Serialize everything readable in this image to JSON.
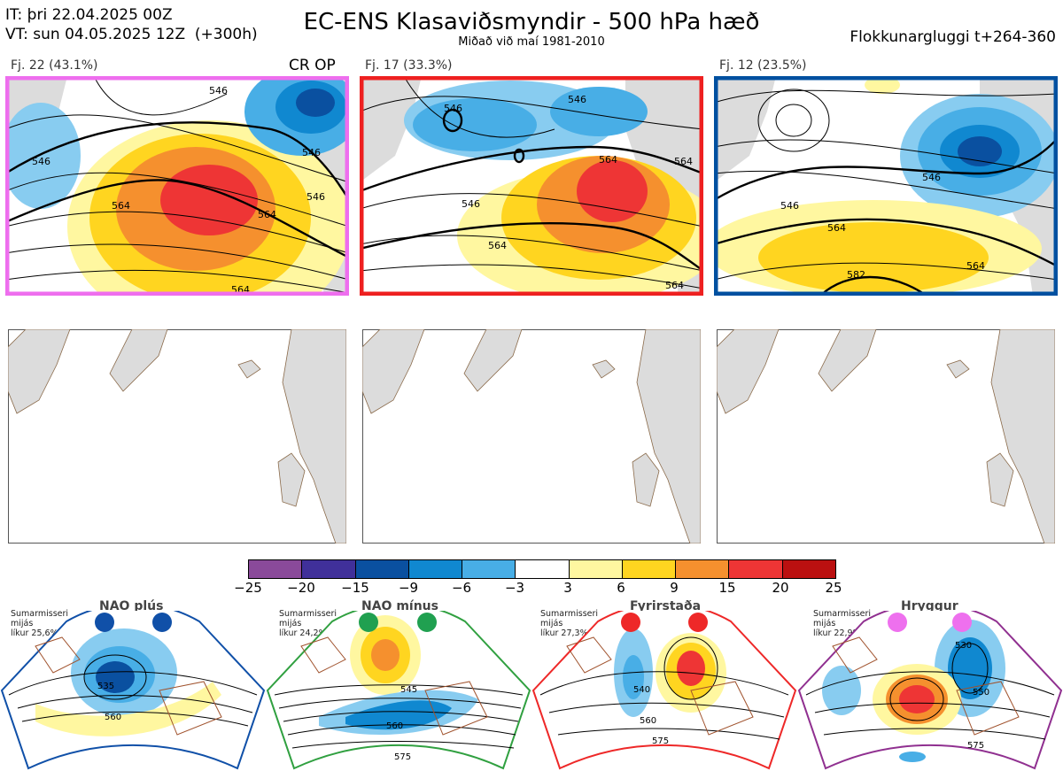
{
  "header": {
    "it_line": "IT: þri 22.04.2025 00Z",
    "vt_line": "VT: sun 04.05.2025 12Z  (+300h)",
    "title": "EC-ENS Klasaviðsmyndir - 500 hPa hæð",
    "subtitle": "Miðað við maí 1981-2010",
    "window": "Flokkunargluggi t+264-360"
  },
  "clusters": [
    {
      "label": "Fj. 22 (43.1%)",
      "extra": "CR OP",
      "border_color": "#ee6eee",
      "contours": [
        "546",
        "546",
        "564",
        "564",
        "546",
        "564",
        "546"
      ]
    },
    {
      "label": "Fj. 17 (33.3%)",
      "extra": "",
      "border_color": "#ee2020",
      "contours": [
        "546",
        "564",
        "564",
        "546",
        "564",
        "564",
        "546"
      ]
    },
    {
      "label": "Fj. 12 (23.5%)",
      "extra": "",
      "border_color": "#0050a0",
      "contours": [
        "546",
        "546",
        "564",
        "564",
        "582"
      ]
    }
  ],
  "colorbar": {
    "colors": [
      "#8a4a9a",
      "#40309a",
      "#0a50a0",
      "#1088d0",
      "#48aee6",
      "#88ccf0",
      "#ffffff",
      "#fff7a0",
      "#ffd520",
      "#f5902e",
      "#ee3535",
      "#bb1010"
    ],
    "ticks": [
      "−25",
      "−20",
      "−15",
      "−9",
      "−6",
      "−3",
      "3",
      "6",
      "9",
      "15",
      "20",
      "25"
    ]
  },
  "regimes": [
    {
      "name": "NAO plús",
      "season": "Sumarmisseri",
      "subtitle": "mijás",
      "prob": "líkur 25,6%",
      "dot_color": "#1050a8",
      "border_color": "#1050a8",
      "contours": [
        "535",
        "560"
      ]
    },
    {
      "name": "NAO mínus",
      "season": "Sumarmisseri",
      "subtitle": "mijás",
      "prob": "líkur 24,2%",
      "dot_color": "#20a050",
      "border_color": "#30a040",
      "contours": [
        "545",
        "560",
        "575"
      ]
    },
    {
      "name": "Fyrirstaða",
      "season": "Sumarmisseri",
      "subtitle": "mijás",
      "prob": "líkur 27,3%",
      "dot_color": "#ee2828",
      "border_color": "#ee2828",
      "contours": [
        "540",
        "560",
        "575"
      ]
    },
    {
      "name": "Hryggur",
      "season": "Sumarmisseri",
      "subtitle": "mijás",
      "prob": "líkur 22,9%",
      "dot_color": "#ee70ee",
      "border_color": "#903090",
      "contours": [
        "530",
        "550",
        "575"
      ]
    }
  ]
}
